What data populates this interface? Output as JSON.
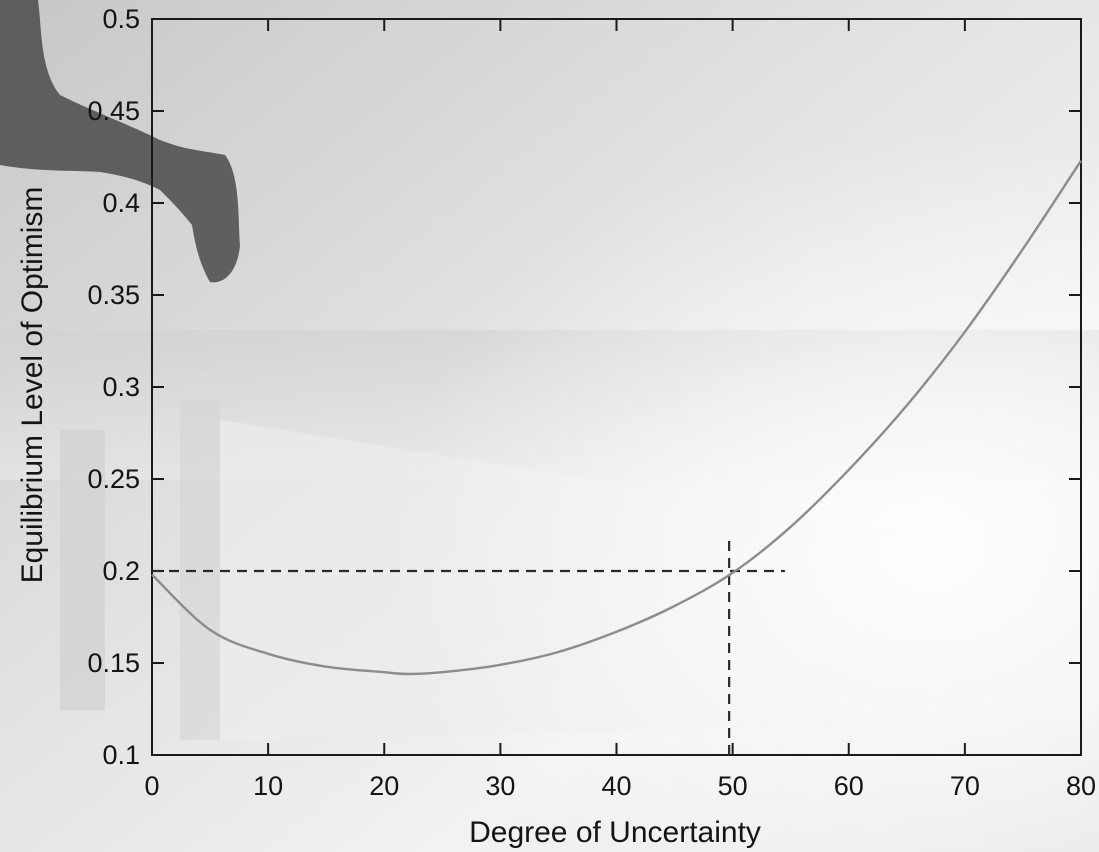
{
  "chart_data": {
    "type": "line",
    "title": "",
    "xlabel": "Degree of Uncertainty",
    "ylabel": "Equilibrium Level of Optimism",
    "xlim": [
      0,
      80
    ],
    "ylim": [
      0.1,
      0.5
    ],
    "xticks": [
      0,
      10,
      20,
      30,
      40,
      50,
      60,
      70,
      80
    ],
    "xtick_labels": [
      "0",
      "10",
      "20",
      "30",
      "40",
      "50",
      "60",
      "70",
      "80"
    ],
    "yticks": [
      0.1,
      0.15,
      0.2,
      0.25,
      0.3,
      0.35,
      0.4,
      0.45,
      0.5
    ],
    "ytick_labels": [
      "0.1",
      "0.15",
      "0.2",
      "0.25",
      "0.3",
      "0.35",
      "0.4",
      "0.45",
      "0.5"
    ],
    "grid": false,
    "legend": "none",
    "series": [
      {
        "x": [
          0,
          5,
          10,
          15,
          20,
          22,
          25,
          30,
          35,
          40,
          45,
          50,
          55,
          60,
          65,
          70,
          75,
          80
        ],
        "y": [
          0.198,
          0.168,
          0.155,
          0.148,
          0.145,
          0.144,
          0.145,
          0.149,
          0.156,
          0.167,
          0.181,
          0.199,
          0.224,
          0.255,
          0.29,
          0.33,
          0.375,
          0.423
        ]
      }
    ],
    "reference_lines": [
      {
        "orientation": "horizontal",
        "y": 0.2,
        "x_from": 0,
        "x_to": 54.5,
        "style": "dashed"
      },
      {
        "orientation": "vertical",
        "x": 49.7,
        "y_from": 0.1,
        "y_to": 0.219,
        "style": "dashed"
      }
    ],
    "colors": {
      "axis": "#1a1a1a",
      "curve": "#8c8c8c",
      "dashed": "#2a2a2a",
      "text": "#141414"
    }
  }
}
